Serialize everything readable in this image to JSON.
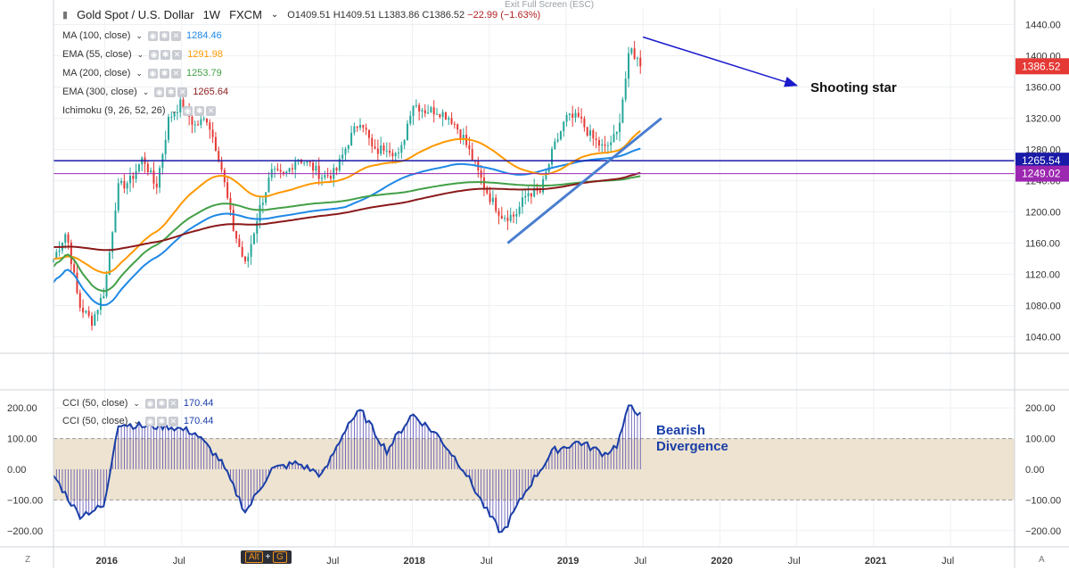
{
  "header": {
    "symbol": "Gold Spot / U.S. Dollar",
    "interval": "1W",
    "source": "FXCM",
    "open": "O1409.51",
    "high": "H1409.51",
    "low": "L1383.86",
    "close": "C1386.52",
    "change": "−22.99 (−1.63%)",
    "exit_fullscreen": "Exit Full Screen (ESC)"
  },
  "indicators": [
    {
      "label": "MA (100, close)",
      "value": "1284.46",
      "color": "#1e88e5"
    },
    {
      "label": "EMA (55, close)",
      "value": "1291.98",
      "color": "#ff9800"
    },
    {
      "label": "MA (200, close)",
      "value": "1253.79",
      "color": "#43a047"
    },
    {
      "label": "EMA (300, close)",
      "value": "1265.64",
      "color": "#8b1a1a"
    },
    {
      "label": "Ichimoku (9, 26, 52, 26)",
      "value": "",
      "color": "#888888"
    }
  ],
  "cci_legend": [
    {
      "label": "CCI (50, close)",
      "value": "170.44",
      "color": "#1a3ea8"
    },
    {
      "label": "CCI (50, close)",
      "value": "170.44",
      "color": "#1a3ea8"
    }
  ],
  "annotations": {
    "shooting_star": "Shooting star",
    "bearish_1": "Bearish",
    "bearish_2": "Divergence"
  },
  "price_labels": {
    "last": "1386.52",
    "line_a": "1265.54",
    "line_b": "1249.02"
  },
  "time_axis": [
    "2016",
    "Jul",
    "Jul",
    "2018",
    "Jul",
    "2019",
    "Jul",
    "2020",
    "Jul",
    "2021",
    "Jul"
  ],
  "bottom_bar": {
    "alt": "Alt",
    "plus": "+",
    "key": "G",
    "left_corner": "Z",
    "right_corner": "A"
  },
  "colors": {
    "up": "#26a69a",
    "down": "#e53935",
    "ma100": "#1e88e5",
    "ema55": "#ff9800",
    "ma200": "#43a047",
    "ema300": "#8b1a1a",
    "hline_a": "#1a1aa8",
    "hline_b": "#9c27b0",
    "cci": "#1a3ea8",
    "band": "#ede3d0",
    "arrow": "#1a1acc",
    "trend": "#4a7ed0"
  },
  "chart_data": [
    {
      "type": "candlestick",
      "title": "Gold Spot / U.S. Dollar 1W FXCM",
      "ylim": [
        1020,
        1460
      ],
      "y_ticks": [
        1040,
        1080,
        1120,
        1160,
        1200,
        1240,
        1280,
        1320,
        1360,
        1400,
        1440
      ],
      "x_range": [
        "2015-09",
        "2021-12"
      ],
      "close_path": [
        [
          "2015-09",
          1140
        ],
        [
          "2015-10",
          1175
        ],
        [
          "2015-11",
          1080
        ],
        [
          "2015-12",
          1060
        ],
        [
          "2016-01",
          1100
        ],
        [
          "2016-02",
          1230
        ],
        [
          "2016-03",
          1240
        ],
        [
          "2016-04",
          1270
        ],
        [
          "2016-05",
          1230
        ],
        [
          "2016-06",
          1320
        ],
        [
          "2016-07",
          1340
        ],
        [
          "2016-08",
          1310
        ],
        [
          "2016-09",
          1320
        ],
        [
          "2016-10",
          1265
        ],
        [
          "2016-11",
          1180
        ],
        [
          "2016-12",
          1130
        ],
        [
          "2017-01",
          1200
        ],
        [
          "2017-02",
          1250
        ],
        [
          "2017-03",
          1245
        ],
        [
          "2017-04",
          1270
        ],
        [
          "2017-05",
          1260
        ],
        [
          "2017-06",
          1245
        ],
        [
          "2017-07",
          1250
        ],
        [
          "2017-08",
          1290
        ],
        [
          "2017-09",
          1320
        ],
        [
          "2017-10",
          1275
        ],
        [
          "2017-11",
          1285
        ],
        [
          "2017-12",
          1270
        ],
        [
          "2018-01",
          1340
        ],
        [
          "2018-02",
          1330
        ],
        [
          "2018-03",
          1330
        ],
        [
          "2018-04",
          1320
        ],
        [
          "2018-05",
          1295
        ],
        [
          "2018-06",
          1255
        ],
        [
          "2018-07",
          1220
        ],
        [
          "2018-08",
          1195
        ],
        [
          "2018-09",
          1195
        ],
        [
          "2018-10",
          1225
        ],
        [
          "2018-11",
          1225
        ],
        [
          "2018-12",
          1280
        ],
        [
          "2019-01",
          1320
        ],
        [
          "2019-02",
          1320
        ],
        [
          "2019-03",
          1295
        ],
        [
          "2019-04",
          1280
        ],
        [
          "2019-05",
          1300
        ],
        [
          "2019-06",
          1410
        ],
        [
          "2019-06-28",
          1386.52
        ]
      ],
      "series": [
        {
          "name": "MA (100, close)",
          "last": 1284.46
        },
        {
          "name": "EMA (55, close)",
          "last": 1291.98
        },
        {
          "name": "MA (200, close)",
          "last": 1253.79
        },
        {
          "name": "EMA (300, close)",
          "last": 1265.64
        }
      ],
      "horizontal_lines": [
        1265.54,
        1249.02
      ],
      "last_price": 1386.52
    },
    {
      "type": "line",
      "title": "CCI (50, close)",
      "ylim": [
        -250,
        250
      ],
      "y_ticks": [
        -200,
        -100,
        0,
        100,
        200
      ],
      "band": [
        -100,
        100
      ],
      "path": [
        [
          "2015-09",
          -20
        ],
        [
          "2015-11",
          -150
        ],
        [
          "2016-01",
          -120
        ],
        [
          "2016-02",
          150
        ],
        [
          "2016-04",
          140
        ],
        [
          "2016-06",
          140
        ],
        [
          "2016-08",
          120
        ],
        [
          "2016-10",
          30
        ],
        [
          "2016-12",
          -140
        ],
        [
          "2017-02",
          0
        ],
        [
          "2017-04",
          20
        ],
        [
          "2017-06",
          -20
        ],
        [
          "2017-08",
          150
        ],
        [
          "2017-09",
          190
        ],
        [
          "2017-11",
          60
        ],
        [
          "2018-01",
          180
        ],
        [
          "2018-03",
          110
        ],
        [
          "2018-05",
          0
        ],
        [
          "2018-07",
          -150
        ],
        [
          "2018-08",
          -210
        ],
        [
          "2018-10",
          -60
        ],
        [
          "2018-12",
          60
        ],
        [
          "2019-02",
          90
        ],
        [
          "2019-04",
          50
        ],
        [
          "2019-05",
          80
        ],
        [
          "2019-06",
          215
        ],
        [
          "2019-06-28",
          170.44
        ]
      ],
      "last": 170.44
    }
  ]
}
